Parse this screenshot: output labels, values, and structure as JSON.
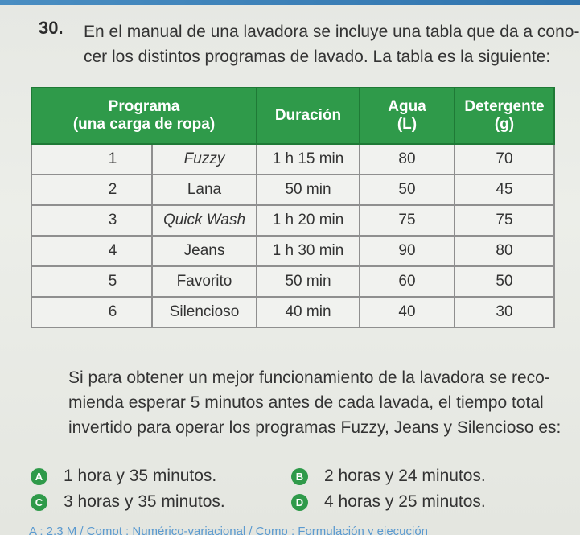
{
  "question": {
    "number": "30.",
    "text_lines": [
      "En el manual de una lavadora se incluye una tabla que da a cono-",
      "cer los distintos programas de lavado. La tabla es la siguiente:"
    ]
  },
  "table": {
    "headers": {
      "programa_line1": "Programa",
      "programa_line2": "(una carga de ropa)",
      "duracion": "Duración",
      "agua_line1": "Agua",
      "agua_line2": "(L)",
      "detergente_line1": "Detergente",
      "detergente_line2": "(g)"
    },
    "rows": [
      {
        "num": "1",
        "program": "Fuzzy",
        "duration": "1 h 15 min",
        "water": "80",
        "detergent": "70"
      },
      {
        "num": "2",
        "program": "Lana",
        "duration": "50 min",
        "water": "50",
        "detergent": "45"
      },
      {
        "num": "3",
        "program": "Quick Wash",
        "duration": "1 h 20 min",
        "water": "75",
        "detergent": "75"
      },
      {
        "num": "4",
        "program": "Jeans",
        "duration": "1 h 30 min",
        "water": "90",
        "detergent": "80"
      },
      {
        "num": "5",
        "program": "Favorito",
        "duration": "50 min",
        "water": "60",
        "detergent": "50"
      },
      {
        "num": "6",
        "program": "Silencioso",
        "duration": "40 min",
        "water": "40",
        "detergent": "30"
      }
    ]
  },
  "paragraph_lines": [
    "Si para obtener un mejor funcionamiento de la lavadora se reco-",
    "mienda esperar 5 minutos antes de cada lavada, el tiempo total",
    "invertido para operar los programas Fuzzy, Jeans y Silencioso es:"
  ],
  "options": [
    {
      "letter": "A",
      "text": "1 hora y 35 minutos."
    },
    {
      "letter": "B",
      "text": "2 horas y 24 minutos."
    },
    {
      "letter": "C",
      "text": "3 horas y 35 minutos."
    },
    {
      "letter": "D",
      "text": "4 horas y 25 minutos."
    }
  ],
  "footer": "A : 2.3 M / Compt : Numérico-variacional / Comp : Formulación y ejecución",
  "colors": {
    "header_green": "#2f9a4a",
    "badge_green": "#2f9a4a",
    "top_stripe": "#2f73ad"
  }
}
